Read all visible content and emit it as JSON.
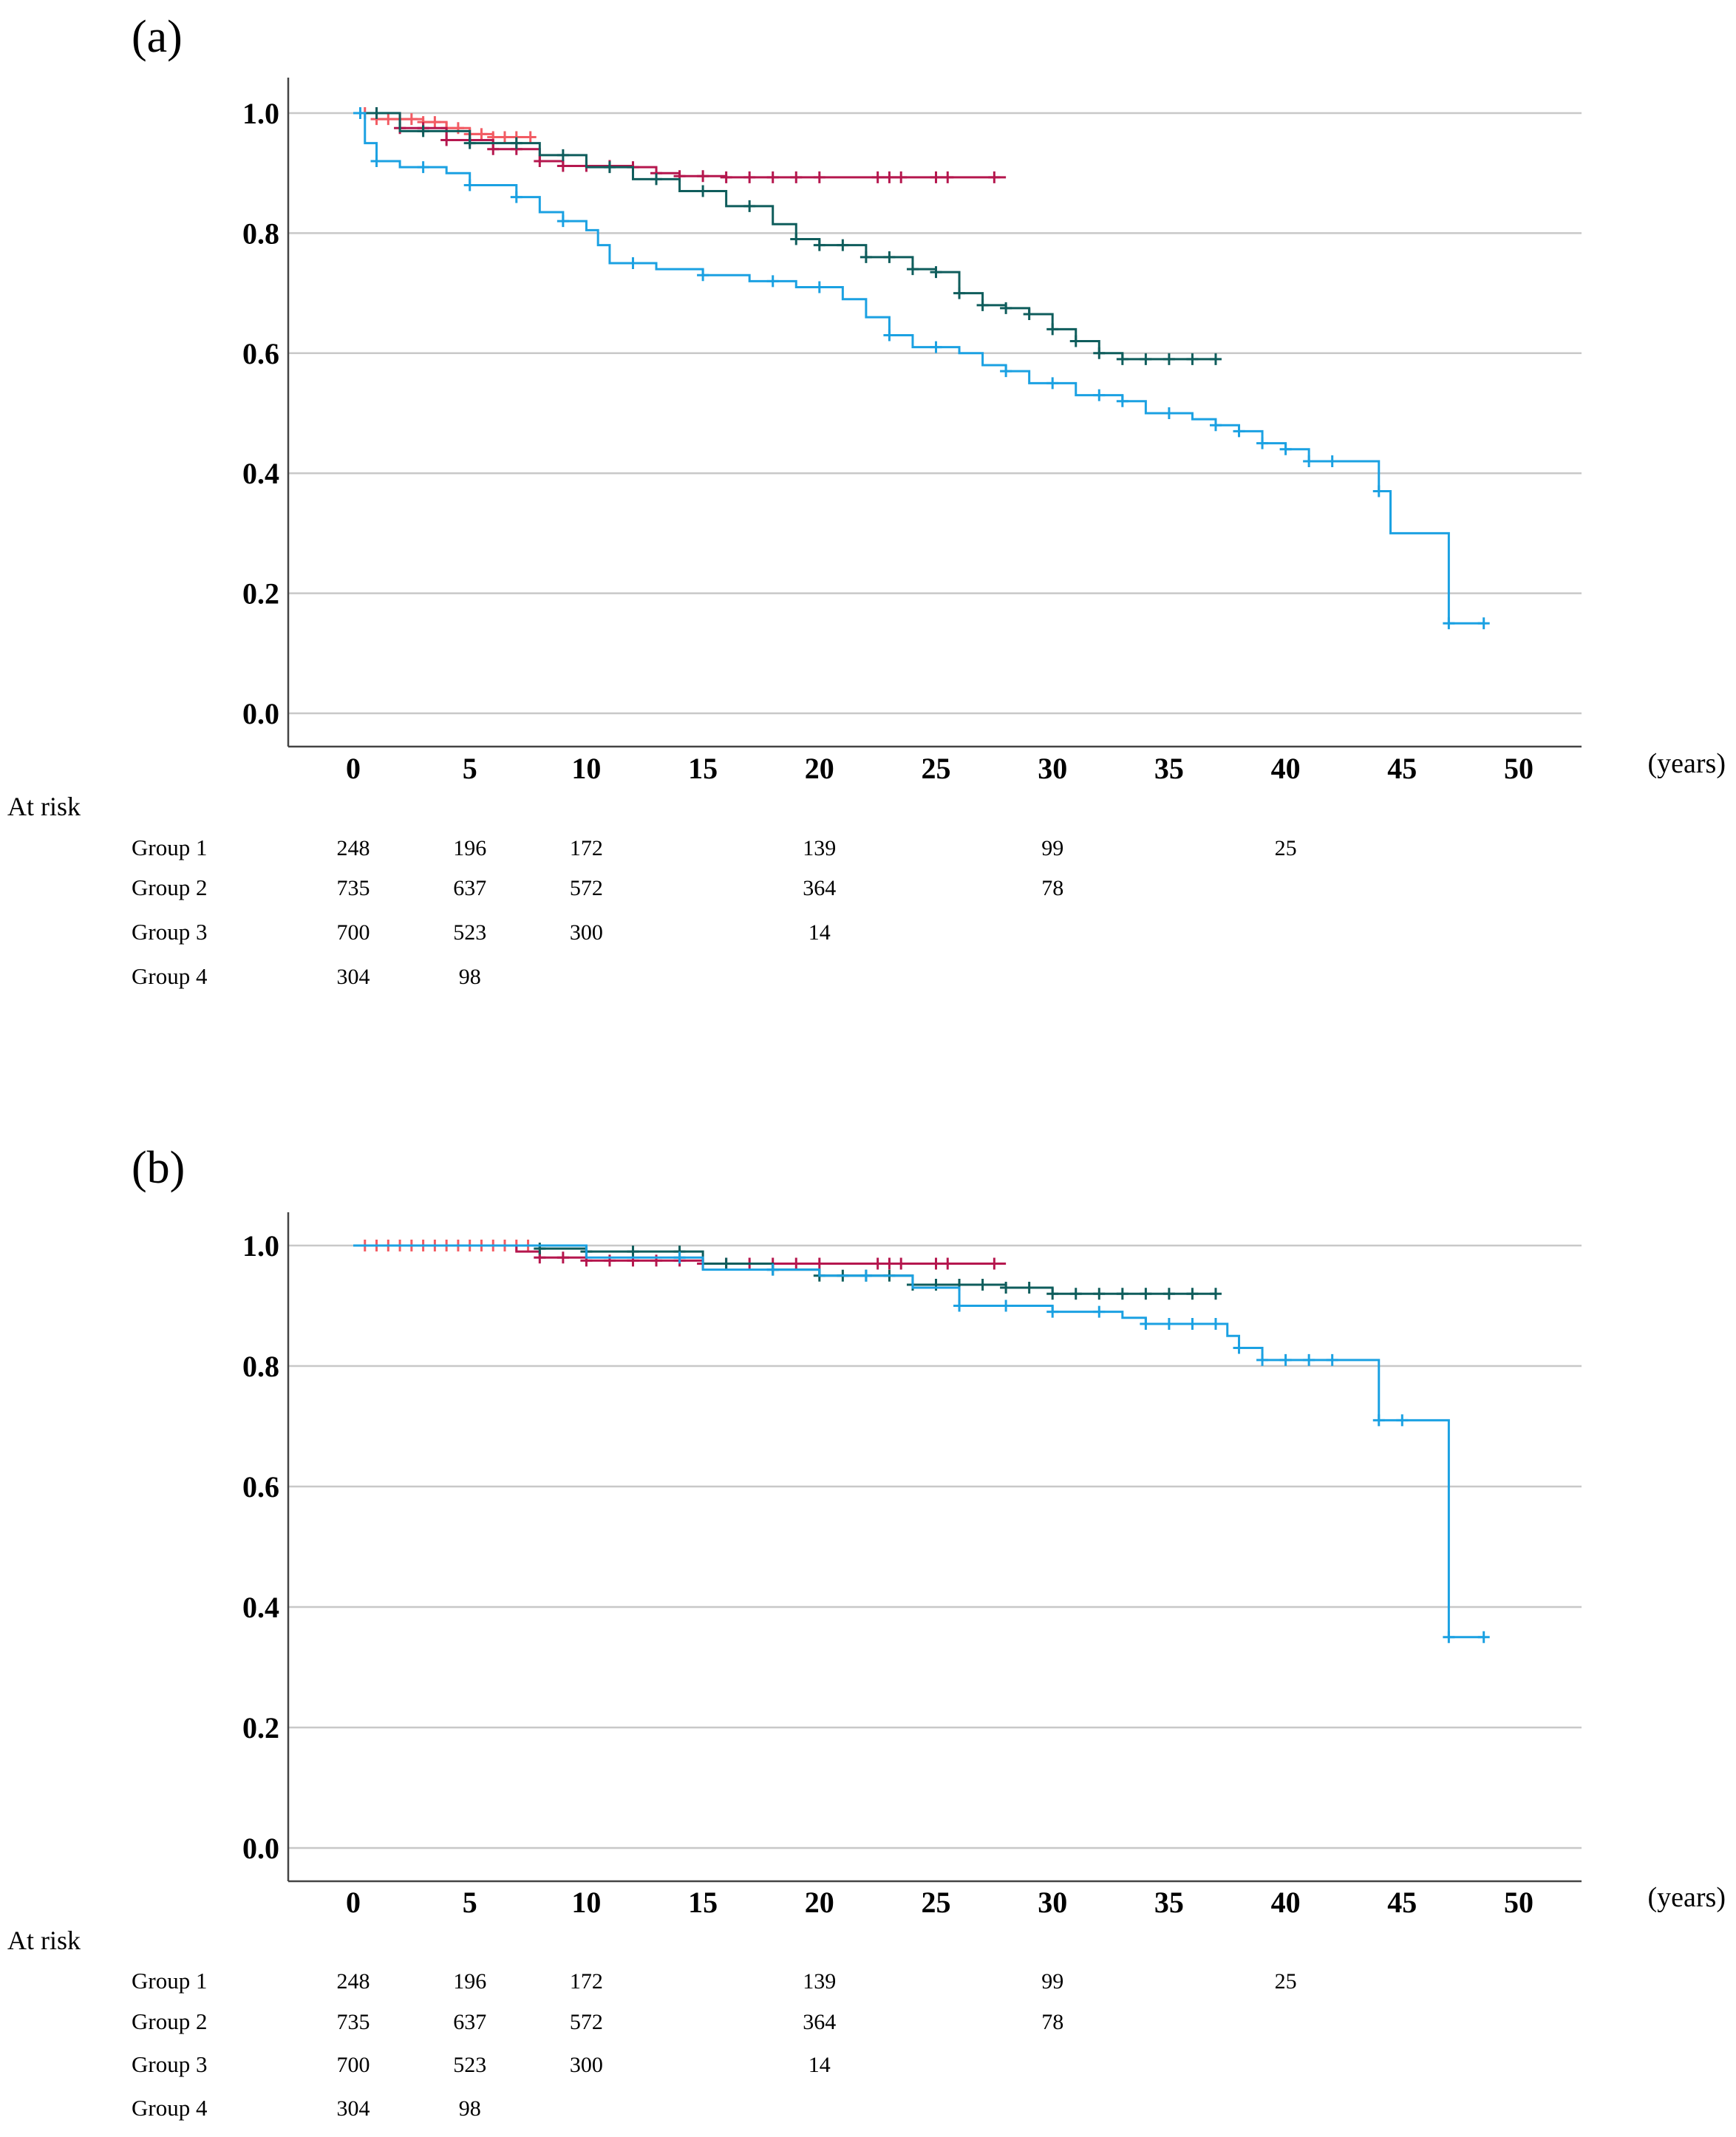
{
  "chart_data": [
    {
      "panel": "(a)",
      "type": "line",
      "subtype": "kaplan-meier",
      "xlabel": "(years)",
      "ylabel": "",
      "xlim": [
        0,
        50
      ],
      "ylim": [
        0,
        1.05
      ],
      "x_ticks": [
        0,
        5,
        10,
        15,
        20,
        25,
        30,
        35,
        40,
        45,
        50
      ],
      "y_ticks": [
        "0.0",
        "0.2",
        "0.4",
        "0.6",
        "0.8",
        "1.0"
      ],
      "grid": "horizontal",
      "series": [
        {
          "name": "Group 4",
          "color": "#f25b63",
          "points": [
            [
              0,
              1.0
            ],
            [
              1,
              0.99
            ],
            [
              3,
              0.985
            ],
            [
              4,
              0.975
            ],
            [
              5,
              0.965
            ],
            [
              6,
              0.96
            ],
            [
              7,
              0.96
            ],
            [
              7.6,
              0.96
            ]
          ],
          "censor": [
            0.5,
            1,
            1.5,
            2,
            2.5,
            3,
            3.5,
            4,
            4.5,
            5,
            5.5,
            6,
            6.5,
            7,
            7.6
          ]
        },
        {
          "name": "Group 3",
          "color": "#b5174e",
          "points": [
            [
              0,
              1.0
            ],
            [
              2,
              0.975
            ],
            [
              4,
              0.955
            ],
            [
              6,
              0.94
            ],
            [
              8,
              0.92
            ],
            [
              9,
              0.912
            ],
            [
              12,
              0.91
            ],
            [
              13,
              0.9
            ],
            [
              14,
              0.895
            ],
            [
              16,
              0.893
            ],
            [
              20,
              0.893
            ],
            [
              28,
              0.893
            ]
          ],
          "censor": [
            1,
            2,
            3,
            4,
            5,
            6,
            7,
            8,
            9,
            10,
            11,
            12,
            13,
            14,
            15,
            16,
            17,
            18,
            19,
            20,
            22.5,
            23,
            23.5,
            25,
            25.5,
            27.5
          ]
        },
        {
          "name": "Group 2",
          "color": "#0f5d5c",
          "points": [
            [
              0,
              1.0
            ],
            [
              2,
              0.97
            ],
            [
              5,
              0.95
            ],
            [
              8,
              0.93
            ],
            [
              10,
              0.91
            ],
            [
              12,
              0.89
            ],
            [
              14,
              0.87
            ],
            [
              16,
              0.845
            ],
            [
              18,
              0.815
            ],
            [
              19,
              0.79
            ],
            [
              20,
              0.78
            ],
            [
              22,
              0.76
            ],
            [
              24,
              0.74
            ],
            [
              25,
              0.735
            ],
            [
              26,
              0.7
            ],
            [
              27,
              0.68
            ],
            [
              28,
              0.675
            ],
            [
              29,
              0.665
            ],
            [
              30,
              0.64
            ],
            [
              31,
              0.62
            ],
            [
              32,
              0.6
            ],
            [
              33,
              0.59
            ],
            [
              37,
              0.59
            ]
          ],
          "censor": [
            1,
            3,
            5,
            7,
            9,
            11,
            13,
            15,
            17,
            19,
            20,
            21,
            22,
            23,
            24,
            25,
            26,
            27,
            28,
            29,
            30,
            31,
            32,
            33,
            34,
            35,
            36,
            37
          ]
        },
        {
          "name": "Group 1",
          "color": "#1ba1e2",
          "points": [
            [
              0,
              1.0
            ],
            [
              0.5,
              0.95
            ],
            [
              1,
              0.92
            ],
            [
              2,
              0.91
            ],
            [
              4,
              0.9
            ],
            [
              5,
              0.88
            ],
            [
              7,
              0.86
            ],
            [
              8,
              0.835
            ],
            [
              9,
              0.82
            ],
            [
              10,
              0.805
            ],
            [
              10.5,
              0.78
            ],
            [
              11,
              0.75
            ],
            [
              13,
              0.74
            ],
            [
              15,
              0.73
            ],
            [
              17,
              0.72
            ],
            [
              19,
              0.71
            ],
            [
              21,
              0.69
            ],
            [
              22,
              0.66
            ],
            [
              23,
              0.63
            ],
            [
              24,
              0.61
            ],
            [
              26,
              0.6
            ],
            [
              27,
              0.58
            ],
            [
              28,
              0.57
            ],
            [
              29,
              0.55
            ],
            [
              31,
              0.53
            ],
            [
              33,
              0.52
            ],
            [
              34,
              0.5
            ],
            [
              36,
              0.49
            ],
            [
              37,
              0.48
            ],
            [
              38,
              0.47
            ],
            [
              39,
              0.45
            ],
            [
              40,
              0.44
            ],
            [
              41,
              0.42
            ],
            [
              43,
              0.42
            ],
            [
              44,
              0.37
            ],
            [
              44.5,
              0.3
            ],
            [
              47,
              0.3
            ],
            [
              47,
              0.15
            ],
            [
              48.5,
              0.15
            ]
          ],
          "censor": [
            0.3,
            1,
            3,
            5,
            7,
            9,
            12,
            15,
            18,
            20,
            23,
            25,
            28,
            30,
            32,
            33,
            35,
            37,
            38,
            39,
            40,
            41,
            42,
            44,
            47,
            48.5
          ]
        }
      ],
      "at_risk": {
        "title": "At risk",
        "times": [
          0,
          5,
          10,
          20,
          30,
          40
        ],
        "groups": [
          {
            "label": "Group 1",
            "counts": [
              "248",
              "196",
              "172",
              "139",
              "99",
              "25"
            ]
          },
          {
            "label": "Group 2",
            "counts": [
              "735",
              "637",
              "572",
              "364",
              "78",
              null
            ]
          },
          {
            "label": "Group 3",
            "counts": [
              "700",
              "523",
              "300",
              "14",
              null,
              null
            ]
          },
          {
            "label": "Group 4",
            "counts": [
              "304",
              "98",
              null,
              null,
              null,
              null
            ]
          }
        ]
      }
    },
    {
      "panel": "(b)",
      "type": "line",
      "subtype": "kaplan-meier",
      "xlabel": "(years)",
      "ylabel": "",
      "xlim": [
        0,
        50
      ],
      "ylim": [
        0,
        1.05
      ],
      "x_ticks": [
        0,
        5,
        10,
        15,
        20,
        25,
        30,
        35,
        40,
        45,
        50
      ],
      "y_ticks": [
        "0.0",
        "0.2",
        "0.4",
        "0.6",
        "0.8",
        "1.0"
      ],
      "grid": "horizontal",
      "series": [
        {
          "name": "Group 4",
          "color": "#f25b63",
          "points": [
            [
              0,
              1.0
            ],
            [
              5,
              1.0
            ],
            [
              7.5,
              1.0
            ]
          ],
          "censor": [
            0.5,
            1,
            1.5,
            2,
            2.5,
            3,
            3.5,
            4,
            4.5,
            5,
            5.5,
            6,
            6.5,
            7,
            7.5
          ]
        },
        {
          "name": "Group 3",
          "color": "#b5174e",
          "points": [
            [
              0,
              1.0
            ],
            [
              7,
              0.99
            ],
            [
              8,
              0.98
            ],
            [
              10,
              0.975
            ],
            [
              15,
              0.97
            ],
            [
              20,
              0.97
            ],
            [
              28,
              0.97
            ]
          ],
          "censor": [
            8,
            9,
            10,
            11,
            12,
            13,
            14,
            15,
            16,
            17,
            18,
            19,
            20,
            22.5,
            23,
            23.5,
            25,
            25.5,
            27.5
          ]
        },
        {
          "name": "Group 2",
          "color": "#0f5d5c",
          "points": [
            [
              0,
              1.0
            ],
            [
              8,
              0.995
            ],
            [
              10,
              0.99
            ],
            [
              15,
              0.97
            ],
            [
              18,
              0.96
            ],
            [
              20,
              0.95
            ],
            [
              24,
              0.935
            ],
            [
              28,
              0.93
            ],
            [
              30,
              0.92
            ],
            [
              35,
              0.92
            ],
            [
              37,
              0.92
            ]
          ],
          "censor": [
            8,
            10,
            12,
            14,
            16,
            18,
            20,
            21,
            22,
            23,
            24,
            25,
            26,
            27,
            28,
            29,
            30,
            31,
            32,
            33,
            34,
            35,
            36,
            37
          ]
        },
        {
          "name": "Group 1",
          "color": "#1ba1e2",
          "points": [
            [
              0,
              1.0
            ],
            [
              10,
              0.98
            ],
            [
              15,
              0.96
            ],
            [
              20,
              0.95
            ],
            [
              24,
              0.93
            ],
            [
              26,
              0.9
            ],
            [
              30,
              0.89
            ],
            [
              33,
              0.88
            ],
            [
              34,
              0.87
            ],
            [
              37,
              0.87
            ],
            [
              37.5,
              0.85
            ],
            [
              38,
              0.83
            ],
            [
              39,
              0.81
            ],
            [
              41,
              0.81
            ],
            [
              43,
              0.81
            ],
            [
              44,
              0.71
            ],
            [
              47,
              0.71
            ],
            [
              47,
              0.35
            ],
            [
              48.5,
              0.35
            ]
          ],
          "censor": [
            14,
            18,
            22,
            26,
            28,
            30,
            32,
            34,
            35,
            36,
            37,
            38,
            39,
            40,
            41,
            42,
            44,
            45,
            47,
            48.5
          ]
        }
      ],
      "at_risk": {
        "title": "At risk",
        "times": [
          0,
          5,
          10,
          20,
          30,
          40
        ],
        "groups": [
          {
            "label": "Group 1",
            "counts": [
              "248",
              "196",
              "172",
              "139",
              "99",
              "25"
            ]
          },
          {
            "label": "Group 2",
            "counts": [
              "735",
              "637",
              "572",
              "364",
              "78",
              null
            ]
          },
          {
            "label": "Group 3",
            "counts": [
              "700",
              "523",
              "300",
              "14",
              null,
              null
            ]
          },
          {
            "label": "Group 4",
            "counts": [
              "304",
              "98",
              null,
              null,
              null,
              null
            ]
          }
        ]
      }
    }
  ]
}
